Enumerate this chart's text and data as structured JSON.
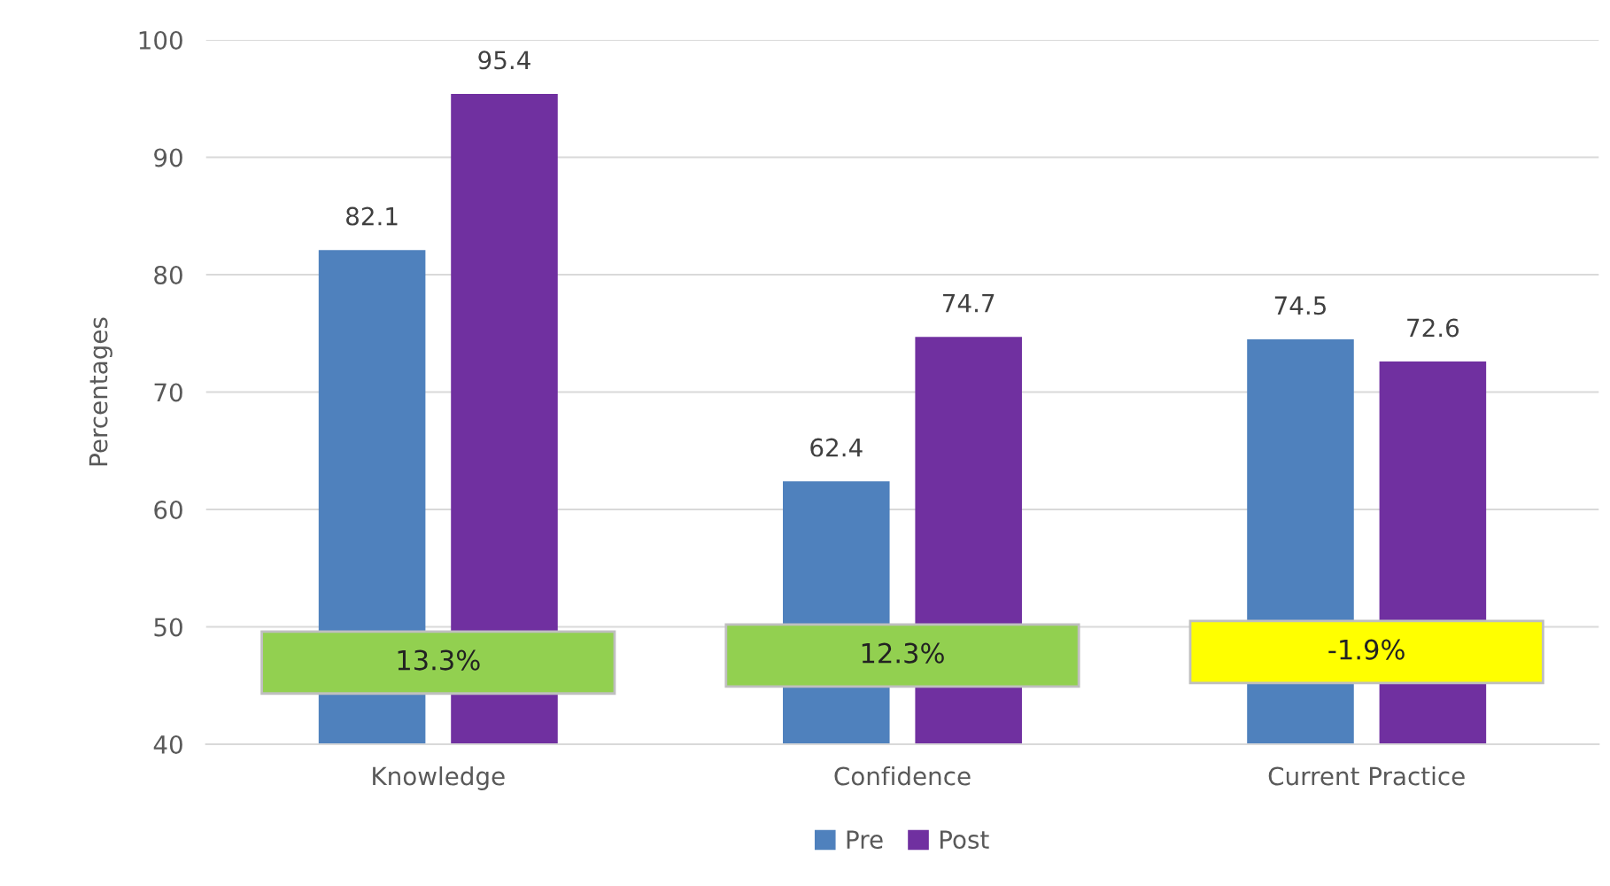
{
  "chart_data": {
    "type": "bar",
    "ylabel": "Percentages",
    "categories": [
      "Knowledge",
      "Confidence",
      "Current Practice"
    ],
    "series": [
      {
        "name": "Pre",
        "color": "#4f81bd",
        "values": [
          82.1,
          62.4,
          74.5
        ]
      },
      {
        "name": "Post",
        "color": "#7030a0",
        "values": [
          95.4,
          74.7,
          72.6
        ]
      }
    ],
    "ylim": [
      40,
      100
    ],
    "yticks": [
      40,
      50,
      60,
      70,
      80,
      90,
      100
    ],
    "grid": "y",
    "legend": "bottom",
    "data_labels": true,
    "annotations": [
      "13.3%",
      "12.3%",
      "-1.9%"
    ]
  }
}
